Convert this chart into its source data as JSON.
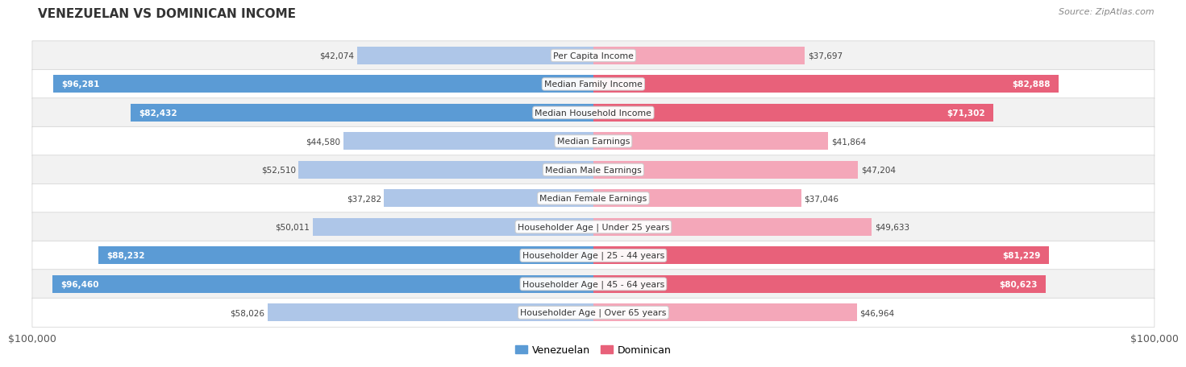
{
  "title": "VENEZUELAN VS DOMINICAN INCOME",
  "source": "Source: ZipAtlas.com",
  "categories": [
    "Per Capita Income",
    "Median Family Income",
    "Median Household Income",
    "Median Earnings",
    "Median Male Earnings",
    "Median Female Earnings",
    "Householder Age | Under 25 years",
    "Householder Age | 25 - 44 years",
    "Householder Age | 45 - 64 years",
    "Householder Age | Over 65 years"
  ],
  "venezuelan_values": [
    42074,
    96281,
    82432,
    44580,
    52510,
    37282,
    50011,
    88232,
    96460,
    58026
  ],
  "dominican_values": [
    37697,
    82888,
    71302,
    41864,
    47204,
    37046,
    49633,
    81229,
    80623,
    46964
  ],
  "venezuelan_labels": [
    "$42,074",
    "$96,281",
    "$82,432",
    "$44,580",
    "$52,510",
    "$37,282",
    "$50,011",
    "$88,232",
    "$96,460",
    "$58,026"
  ],
  "dominican_labels": [
    "$37,697",
    "$82,888",
    "$71,302",
    "$41,864",
    "$47,204",
    "$37,046",
    "$49,633",
    "$81,229",
    "$80,623",
    "$46,964"
  ],
  "max_value": 100000,
  "venezuelan_color_light": "#aec6e8",
  "venezuelan_color_dark": "#5b9bd5",
  "dominican_color_light": "#f4a7b9",
  "dominican_color_dark": "#e8617a",
  "bar_height": 0.62,
  "fig_bg": "#ffffff",
  "row_bg_even": "#f2f2f2",
  "row_bg_odd": "#ffffff",
  "row_border": "#d0d0d0",
  "venezuelan_threshold": 70000,
  "dominican_threshold": 70000,
  "xlabel_left": "$100,000",
  "xlabel_right": "$100,000",
  "legend_ven": "Venezuelan",
  "legend_dom": "Dominican"
}
